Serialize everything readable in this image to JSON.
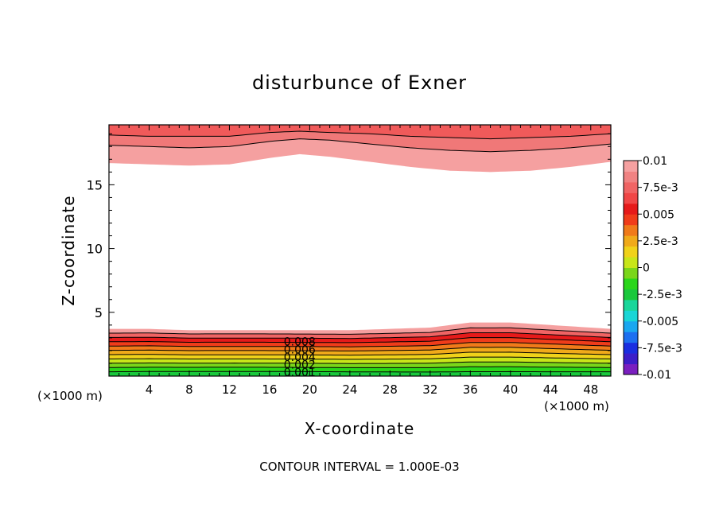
{
  "chart_data": {
    "type": "filled-contour",
    "title": "disturbunce of Exner",
    "xlabel": "X-coordinate",
    "ylabel": "Z-coordinate",
    "x_unit_label_left": "(×1000 m)",
    "x_unit_label_right": "(×1000 m)",
    "footer": "CONTOUR INTERVAL = 1.000E-03",
    "xlim": [
      0,
      50
    ],
    "ylim": [
      0,
      19.7
    ],
    "x_ticks": [
      4,
      8,
      12,
      16,
      20,
      24,
      28,
      32,
      36,
      40,
      44,
      48
    ],
    "x_tick_labels": [
      "4",
      "8",
      "12",
      "16",
      "20",
      "24",
      "28",
      "32",
      "36",
      "40",
      "44",
      "48"
    ],
    "y_ticks": [
      5,
      10,
      15
    ],
    "y_tick_labels": [
      "5",
      "10",
      "15"
    ],
    "contour_labels": [
      {
        "text": "0.008",
        "x": 19.0,
        "z": 2.7
      },
      {
        "text": "0.006",
        "x": 19.0,
        "z": 2.1
      },
      {
        "text": "0.004",
        "x": 19.0,
        "z": 1.5
      },
      {
        "text": "0.002",
        "x": 19.0,
        "z": 0.9
      },
      {
        "text": "0.001",
        "x": 19.0,
        "z": 0.3
      }
    ],
    "colorbar": {
      "min": -0.01,
      "max": 0.01,
      "tick_labels": [
        "0.01",
        "7.5e-3",
        "0.005",
        "2.5e-3",
        "0",
        "-2.5e-3",
        "-0.005",
        "-7.5e-3",
        "-0.01"
      ],
      "tick_values": [
        0.01,
        0.0075,
        0.005,
        0.0025,
        0,
        -0.0025,
        -0.005,
        -0.0075,
        -0.01
      ],
      "colors_bottom_to_top": [
        "#7a1fbf",
        "#3c1ec8",
        "#1a2ee0",
        "#1c6ff0",
        "#1aa7f0",
        "#19d6d6",
        "#19d69a",
        "#19c83c",
        "#2ad61a",
        "#7ad61a",
        "#c8e61a",
        "#f0d21a",
        "#f0aa1a",
        "#f07a1a",
        "#f03c1a",
        "#e61a1a",
        "#f04646",
        "#f06464",
        "#f08282",
        "#f5a0a0"
      ]
    },
    "upper_band_boundaries_z": [
      {
        "level": "lowest",
        "points": [
          [
            0,
            16.7
          ],
          [
            4,
            16.6
          ],
          [
            8,
            16.5
          ],
          [
            12,
            16.6
          ],
          [
            16,
            17.1
          ],
          [
            19,
            17.4
          ],
          [
            22,
            17.2
          ],
          [
            26,
            16.8
          ],
          [
            30,
            16.4
          ],
          [
            34,
            16.1
          ],
          [
            38,
            16.0
          ],
          [
            42,
            16.1
          ],
          [
            46,
            16.4
          ],
          [
            50,
            16.8
          ]
        ]
      },
      {
        "level": "mid",
        "points": [
          [
            0,
            18.1
          ],
          [
            4,
            18.0
          ],
          [
            8,
            17.9
          ],
          [
            12,
            18.0
          ],
          [
            16,
            18.4
          ],
          [
            19,
            18.6
          ],
          [
            22,
            18.5
          ],
          [
            26,
            18.2
          ],
          [
            30,
            17.9
          ],
          [
            34,
            17.7
          ],
          [
            38,
            17.6
          ],
          [
            42,
            17.7
          ],
          [
            46,
            17.9
          ],
          [
            50,
            18.2
          ]
        ]
      },
      {
        "level": "high",
        "points": [
          [
            0,
            18.9
          ],
          [
            4,
            18.8
          ],
          [
            8,
            18.8
          ],
          [
            12,
            18.8
          ],
          [
            16,
            19.1
          ],
          [
            19,
            19.2
          ],
          [
            22,
            19.1
          ],
          [
            26,
            19.0
          ],
          [
            30,
            18.8
          ],
          [
            34,
            18.7
          ],
          [
            38,
            18.6
          ],
          [
            42,
            18.7
          ],
          [
            46,
            18.8
          ],
          [
            50,
            19.0
          ]
        ]
      }
    ],
    "lower_band_top_z": [
      [
        0,
        3.7
      ],
      [
        4,
        3.7
      ],
      [
        8,
        3.6
      ],
      [
        12,
        3.6
      ],
      [
        16,
        3.6
      ],
      [
        20,
        3.6
      ],
      [
        24,
        3.6
      ],
      [
        28,
        3.7
      ],
      [
        32,
        3.8
      ],
      [
        36,
        4.2
      ],
      [
        40,
        4.2
      ],
      [
        44,
        4.0
      ],
      [
        48,
        3.8
      ],
      [
        50,
        3.7
      ]
    ]
  }
}
